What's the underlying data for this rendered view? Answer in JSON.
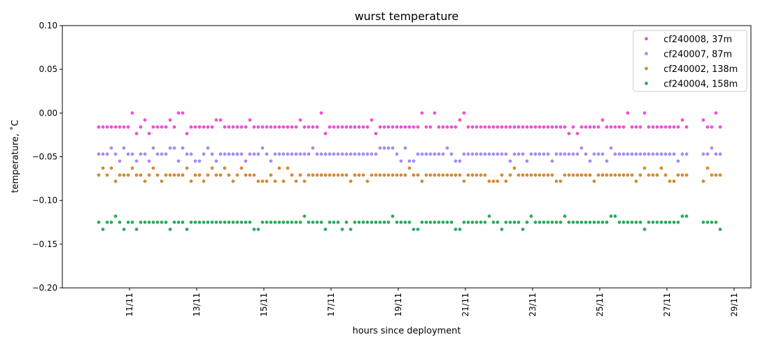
{
  "chart_data": {
    "type": "scatter",
    "title": "wurst temperature",
    "xlabel": "hours since deployment",
    "ylabel": "temperature, ˚C",
    "x_axis_type": "date",
    "xlim": [
      "2024-11-09T00:00",
      "2024-11-29T12:00"
    ],
    "ylim": [
      -0.2,
      0.1
    ],
    "yticks": [
      0.1,
      0.05,
      0.0,
      -0.05,
      -0.1,
      -0.15,
      -0.2
    ],
    "ytick_labels": [
      "0.10",
      "0.05",
      "0.00",
      "−0.05",
      "−0.10",
      "−0.15",
      "−0.20"
    ],
    "xtick_dates": [
      "2024-11-11",
      "2024-11-13",
      "2024-11-15",
      "2024-11-17",
      "2024-11-19",
      "2024-11-21",
      "2024-11-23",
      "2024-11-25",
      "2024-11-27",
      "2024-11-29"
    ],
    "xtick_labels": [
      "11/11",
      "13/11",
      "15/11",
      "17/11",
      "19/11",
      "21/11",
      "23/11",
      "25/11",
      "27/11",
      "29/11"
    ],
    "data_start": "2024-11-10T02:00",
    "data_end": "2024-11-28T14:00",
    "data_gap": [
      "2024-11-27T14:00",
      "2024-11-28T00:00"
    ],
    "grid": false,
    "legend_position": "top-right",
    "series": [
      {
        "name": "cf240008, 37m",
        "color": "#ee4fd9",
        "base": -0.016,
        "levels": [
          -0.0235,
          -0.016,
          -0.008,
          0.0
        ]
      },
      {
        "name": "cf240007, 87m",
        "color": "#a48cf0",
        "base": -0.047,
        "levels": [
          -0.055,
          -0.047,
          -0.04
        ]
      },
      {
        "name": "cf240002, 138m",
        "color": "#d58a2e",
        "base": -0.071,
        "levels": [
          -0.078,
          -0.071,
          -0.063
        ]
      },
      {
        "name": "cf240004, 158m",
        "color": "#2eaa5e",
        "base": -0.125,
        "levels": [
          -0.133,
          -0.125,
          -0.118
        ]
      }
    ]
  }
}
